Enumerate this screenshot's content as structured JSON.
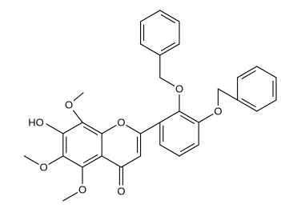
{
  "atom_labels": [
    "HO",
    "O",
    "O",
    "O",
    "O",
    "O",
    "O",
    "O"
  ]
}
